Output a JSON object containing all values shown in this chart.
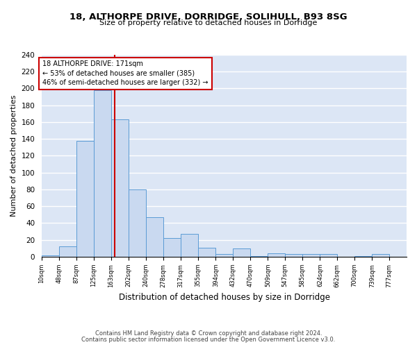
{
  "title1": "18, ALTHORPE DRIVE, DORRIDGE, SOLIHULL, B93 8SG",
  "title2": "Size of property relative to detached houses in Dorridge",
  "xlabel": "Distribution of detached houses by size in Dorridge",
  "ylabel": "Number of detached properties",
  "footer1": "Contains HM Land Registry data © Crown copyright and database right 2024.",
  "footer2": "Contains public sector information licensed under the Open Government Licence v3.0.",
  "annotation_title": "18 ALTHORPE DRIVE: 171sqm",
  "annotation_line1": "← 53% of detached houses are smaller (385)",
  "annotation_line2": "46% of semi-detached houses are larger (332) →",
  "property_size": 171,
  "bar_color": "#c9d9f0",
  "bar_edge_color": "#5b9bd5",
  "vline_color": "#cc0000",
  "annotation_box_color": "#ffffff",
  "annotation_box_edge": "#cc0000",
  "background_color": "#dce6f5",
  "bins": [
    10,
    48,
    87,
    125,
    163,
    202,
    240,
    278,
    317,
    355,
    394,
    432,
    470,
    509,
    547,
    585,
    624,
    662,
    700,
    739,
    777
  ],
  "counts": [
    2,
    12,
    138,
    198,
    163,
    80,
    47,
    22,
    27,
    11,
    3,
    10,
    1,
    4,
    3,
    3,
    3,
    0,
    1,
    3
  ],
  "ylim": [
    0,
    240
  ],
  "yticks": [
    0,
    20,
    40,
    60,
    80,
    100,
    120,
    140,
    160,
    180,
    200,
    220,
    240
  ],
  "figsize": [
    6.0,
    5.0
  ],
  "dpi": 100
}
